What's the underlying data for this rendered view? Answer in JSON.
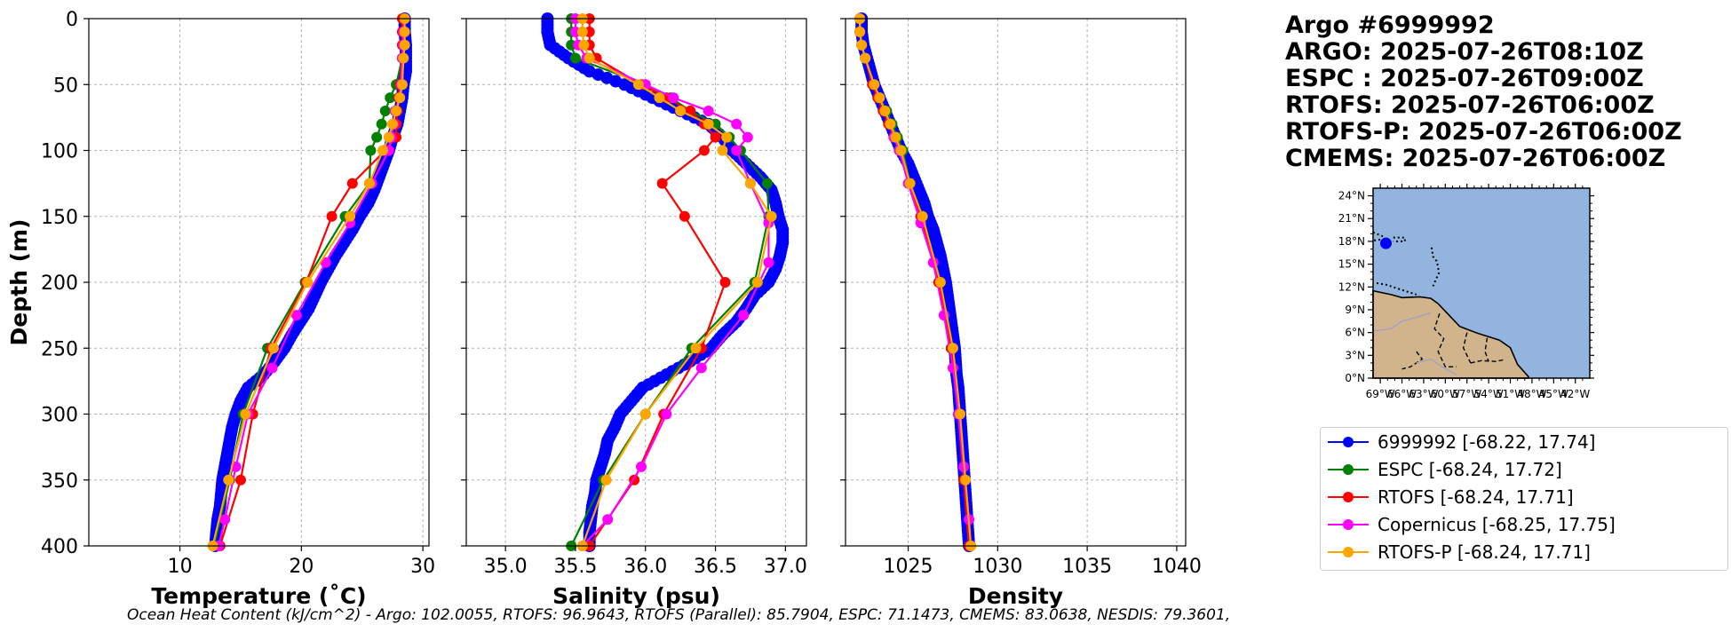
{
  "info": {
    "lines": [
      "Argo #6999992",
      "ARGO: 2025-07-26T08:10Z",
      "ESPC : 2025-07-26T09:00Z",
      "RTOFS: 2025-07-26T06:00Z",
      "RTOFS-P: 2025-07-26T06:00Z",
      "CMEMS: 2025-07-26T06:00Z"
    ]
  },
  "legend": {
    "items": [
      {
        "label": "6999992 [-68.22, 17.74]",
        "color": "#0000ff"
      },
      {
        "label": "ESPC [-68.24, 17.72]",
        "color": "#008000"
      },
      {
        "label": "RTOFS [-68.24, 17.71]",
        "color": "#ff0000"
      },
      {
        "label": "Copernicus [-68.25, 17.75]",
        "color": "#ff00ff"
      },
      {
        "label": "RTOFS-P [-68.24, 17.71]",
        "color": "#ffa500"
      }
    ]
  },
  "footer": {
    "text": "Ocean Heat Content (kJ/cm^2) - Argo: 102.0055,  RTOFS: 96.9643,  RTOFS (Parallel): 85.7904,  ESPC: 71.1473,  CMEMS: 83.0638,  NESDIS: 79.3601,"
  },
  "colors": {
    "argo": "#0000ff",
    "espc": "#008000",
    "rtofs": "#ff0000",
    "copernicus": "#ff00ff",
    "rtofs_p": "#ffa500",
    "ocean": "#94b4e0",
    "land": "#d2b48c",
    "grid": "#b0b0b0"
  },
  "chart_data": [
    {
      "type": "line",
      "title": "",
      "xlabel": "Temperature (˚C)",
      "ylabel": "Depth (m)",
      "xlim": [
        2.5,
        30.5
      ],
      "ylim": [
        400,
        0
      ],
      "xticks": [
        10,
        20,
        30
      ],
      "yticks": [
        0,
        50,
        100,
        150,
        200,
        250,
        300,
        350,
        400
      ],
      "grid": true,
      "series": [
        {
          "name": "6999992",
          "key": "argo",
          "dense": true,
          "depth": [
            0,
            10,
            20,
            30,
            40,
            50,
            60,
            70,
            80,
            90,
            100,
            110,
            120,
            130,
            140,
            150,
            160,
            170,
            180,
            190,
            200,
            210,
            220,
            230,
            240,
            250,
            260,
            270,
            280,
            290,
            300,
            310,
            320,
            330,
            340,
            350,
            360,
            370,
            380,
            390,
            400
          ],
          "values": [
            28.5,
            28.5,
            28.6,
            28.6,
            28.6,
            28.4,
            28.3,
            28.1,
            27.9,
            27.5,
            27.2,
            26.8,
            26.4,
            26.0,
            25.5,
            24.8,
            24.2,
            23.5,
            22.8,
            22.2,
            21.6,
            21.1,
            20.6,
            19.9,
            19.2,
            18.6,
            17.8,
            16.9,
            15.6,
            15.0,
            14.6,
            14.3,
            14.1,
            13.9,
            13.7,
            13.5,
            13.4,
            13.3,
            13.1,
            13.0,
            12.9
          ]
        },
        {
          "name": "ESPC",
          "key": "espc",
          "depth": [
            0,
            10,
            20,
            30,
            50,
            60,
            70,
            80,
            90,
            100,
            125,
            150,
            200,
            250,
            300,
            350,
            400
          ],
          "values": [
            28.4,
            28.4,
            28.4,
            28.3,
            27.8,
            27.3,
            26.9,
            26.6,
            26.2,
            25.7,
            25.6,
            23.6,
            20.3,
            17.2,
            15.2,
            14.1,
            12.8
          ]
        },
        {
          "name": "RTOFS",
          "key": "rtofs",
          "depth": [
            0,
            10,
            20,
            30,
            50,
            60,
            70,
            80,
            90,
            100,
            125,
            150,
            200,
            250,
            300,
            350,
            400
          ],
          "values": [
            28.3,
            28.3,
            28.3,
            28.3,
            28.1,
            28.0,
            27.9,
            27.8,
            27.8,
            26.9,
            24.2,
            22.5,
            20.4,
            17.5,
            16.0,
            15.0,
            13.3
          ]
        },
        {
          "name": "Copernicus",
          "key": "copernicus",
          "depth": [
            0,
            10,
            20,
            30,
            50,
            60,
            70,
            80,
            90,
            100,
            125,
            155,
            185,
            225,
            265,
            300,
            340,
            380,
            400
          ],
          "values": [
            28.5,
            28.4,
            28.4,
            28.3,
            28.2,
            28.1,
            27.7,
            27.6,
            27.4,
            27.2,
            25.8,
            24.0,
            22.0,
            19.6,
            17.6,
            15.6,
            14.6,
            13.7,
            13.2
          ]
        },
        {
          "name": "RTOFS-P",
          "key": "rtofs_p",
          "depth": [
            0,
            10,
            20,
            30,
            50,
            60,
            70,
            80,
            90,
            100,
            125,
            150,
            200,
            250,
            300,
            350,
            400
          ],
          "values": [
            28.5,
            28.5,
            28.5,
            28.4,
            28.3,
            28.1,
            27.8,
            27.5,
            27.2,
            26.7,
            25.6,
            24.0,
            20.5,
            17.7,
            15.4,
            14.0,
            12.7
          ]
        }
      ]
    },
    {
      "type": "line",
      "title": "",
      "xlabel": "Salinity (psu)",
      "ylabel": "",
      "xlim": [
        34.72,
        37.15
      ],
      "ylim": [
        400,
        0
      ],
      "xticks": [
        35.0,
        35.5,
        36.0,
        36.5,
        37.0
      ],
      "yticks": [
        0,
        50,
        100,
        150,
        200,
        250,
        300,
        350,
        400
      ],
      "grid": true,
      "series": [
        {
          "name": "6999992",
          "key": "argo",
          "dense": true,
          "depth": [
            0,
            10,
            20,
            30,
            40,
            50,
            60,
            70,
            80,
            90,
            100,
            110,
            120,
            130,
            140,
            150,
            160,
            170,
            180,
            190,
            200,
            210,
            220,
            230,
            240,
            250,
            260,
            270,
            280,
            290,
            300,
            310,
            320,
            330,
            340,
            350,
            360,
            370,
            380,
            390,
            400
          ],
          "values": [
            35.3,
            35.3,
            35.32,
            35.45,
            35.6,
            35.85,
            36.05,
            36.25,
            36.45,
            36.55,
            36.62,
            36.72,
            36.82,
            36.9,
            36.93,
            36.95,
            36.98,
            36.98,
            36.96,
            36.93,
            36.88,
            36.78,
            36.72,
            36.65,
            36.55,
            36.47,
            36.32,
            36.15,
            35.98,
            35.9,
            35.82,
            35.78,
            35.73,
            35.71,
            35.68,
            35.65,
            35.64,
            35.62,
            35.61,
            35.6,
            35.6
          ]
        },
        {
          "name": "ESPC",
          "key": "espc",
          "depth": [
            0,
            10,
            20,
            30,
            50,
            60,
            70,
            80,
            90,
            100,
            125,
            150,
            200,
            250,
            300,
            350,
            400
          ],
          "values": [
            35.47,
            35.47,
            35.47,
            35.5,
            36.0,
            36.18,
            36.32,
            36.5,
            36.6,
            36.68,
            36.87,
            36.88,
            36.78,
            36.33,
            36.0,
            35.7,
            35.47
          ]
        },
        {
          "name": "RTOFS",
          "key": "rtofs",
          "depth": [
            0,
            10,
            20,
            30,
            50,
            60,
            70,
            80,
            90,
            100,
            125,
            150,
            200,
            250,
            300,
            350,
            400
          ],
          "values": [
            35.6,
            35.6,
            35.6,
            35.65,
            35.97,
            36.15,
            36.32,
            36.42,
            36.5,
            36.42,
            36.12,
            36.28,
            36.57,
            36.4,
            36.13,
            35.92,
            35.6
          ]
        },
        {
          "name": "Copernicus",
          "key": "copernicus",
          "depth": [
            0,
            10,
            20,
            30,
            50,
            60,
            70,
            80,
            90,
            100,
            125,
            155,
            185,
            225,
            265,
            300,
            340,
            380,
            400
          ],
          "values": [
            35.5,
            35.5,
            35.52,
            35.58,
            36.0,
            36.2,
            36.45,
            36.65,
            36.73,
            36.65,
            36.75,
            36.88,
            36.88,
            36.7,
            36.4,
            36.15,
            35.97,
            35.73,
            35.55
          ]
        },
        {
          "name": "RTOFS-P",
          "key": "rtofs_p",
          "depth": [
            0,
            10,
            20,
            30,
            50,
            60,
            70,
            80,
            90,
            100,
            125,
            150,
            200,
            250,
            300,
            350,
            400
          ],
          "values": [
            35.55,
            35.55,
            35.56,
            35.6,
            35.95,
            36.1,
            36.25,
            36.45,
            36.58,
            36.55,
            36.75,
            36.9,
            36.8,
            36.36,
            36.0,
            35.72,
            35.55
          ]
        }
      ]
    },
    {
      "type": "line",
      "title": "",
      "xlabel": "Density",
      "ylabel": "",
      "xlim": [
        1021.5,
        1040.5
      ],
      "ylim": [
        400,
        0
      ],
      "xticks": [
        1025,
        1030,
        1035,
        1040
      ],
      "yticks": [
        0,
        50,
        100,
        150,
        200,
        250,
        300,
        350,
        400
      ],
      "grid": true,
      "series": [
        {
          "name": "6999992",
          "key": "argo",
          "dense": true,
          "depth": [
            0,
            10,
            20,
            30,
            40,
            50,
            60,
            70,
            80,
            90,
            100,
            110,
            120,
            130,
            140,
            150,
            160,
            170,
            180,
            190,
            200,
            210,
            220,
            230,
            240,
            250,
            260,
            270,
            280,
            290,
            300,
            310,
            320,
            330,
            340,
            350,
            360,
            370,
            380,
            390,
            400
          ],
          "values": [
            1022.4,
            1022.4,
            1022.5,
            1022.7,
            1022.9,
            1023.1,
            1023.4,
            1023.7,
            1024.0,
            1024.3,
            1024.6,
            1025.0,
            1025.3,
            1025.6,
            1025.9,
            1026.1,
            1026.4,
            1026.6,
            1026.8,
            1026.95,
            1027.1,
            1027.2,
            1027.3,
            1027.4,
            1027.5,
            1027.6,
            1027.65,
            1027.7,
            1027.8,
            1027.85,
            1027.9,
            1027.95,
            1028.0,
            1028.05,
            1028.1,
            1028.15,
            1028.2,
            1028.25,
            1028.3,
            1028.35,
            1028.4
          ]
        },
        {
          "name": "ESPC",
          "key": "espc",
          "depth": [
            0,
            10,
            20,
            30,
            50,
            60,
            70,
            80,
            90,
            100,
            125,
            150,
            200,
            250,
            300,
            350,
            400
          ],
          "values": [
            1022.3,
            1022.3,
            1022.4,
            1022.6,
            1023.1,
            1023.4,
            1023.8,
            1024.1,
            1024.4,
            1024.7,
            1025.1,
            1025.8,
            1026.8,
            1027.4,
            1027.8,
            1028.1,
            1028.4
          ]
        },
        {
          "name": "RTOFS",
          "key": "rtofs",
          "depth": [
            0,
            10,
            20,
            30,
            50,
            60,
            70,
            80,
            90,
            100,
            125,
            150,
            200,
            250,
            300,
            350,
            400
          ],
          "values": [
            1022.3,
            1022.3,
            1022.4,
            1022.6,
            1023.0,
            1023.3,
            1023.6,
            1023.9,
            1024.2,
            1024.5,
            1025.1,
            1025.7,
            1026.7,
            1027.4,
            1027.8,
            1028.1,
            1028.4
          ]
        },
        {
          "name": "Copernicus",
          "key": "copernicus",
          "depth": [
            0,
            10,
            20,
            30,
            50,
            60,
            70,
            80,
            90,
            100,
            125,
            155,
            185,
            225,
            265,
            300,
            340,
            380,
            400
          ],
          "values": [
            1022.3,
            1022.3,
            1022.4,
            1022.6,
            1023.1,
            1023.4,
            1023.7,
            1024.0,
            1024.2,
            1024.5,
            1025.0,
            1025.7,
            1026.4,
            1027.0,
            1027.5,
            1027.8,
            1028.1,
            1028.4,
            1028.5
          ]
        },
        {
          "name": "RTOFS-P",
          "key": "rtofs_p",
          "depth": [
            0,
            10,
            20,
            30,
            50,
            60,
            70,
            80,
            90,
            100,
            125,
            150,
            200,
            250,
            300,
            350,
            400
          ],
          "values": [
            1022.3,
            1022.3,
            1022.4,
            1022.6,
            1023.1,
            1023.4,
            1023.7,
            1024.0,
            1024.3,
            1024.6,
            1025.1,
            1025.8,
            1026.8,
            1027.5,
            1027.9,
            1028.2,
            1028.5
          ]
        }
      ]
    }
  ],
  "map": {
    "lat_ticks": [
      "24°N",
      "21°N",
      "18°N",
      "15°N",
      "12°N",
      "9°N",
      "6°N",
      "3°N",
      "0°N"
    ],
    "lon_ticks": [
      "69°W",
      "66°W",
      "63°W",
      "60°W",
      "57°W",
      "54°W",
      "51°W",
      "48°W",
      "45°W",
      "42°W"
    ],
    "lat_range": [
      0,
      25
    ],
    "lon_range": [
      -70,
      -40
    ],
    "float_position": {
      "lon": -68.22,
      "lat": 17.74
    }
  }
}
